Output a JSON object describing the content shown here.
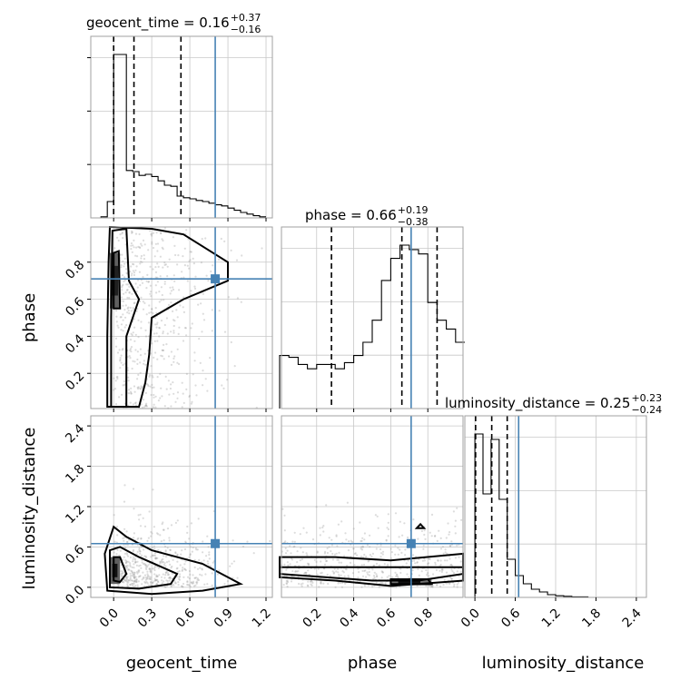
{
  "chart_data": {
    "type": "corner",
    "parameters": [
      "geocent_time",
      "phase",
      "luminosity_distance"
    ],
    "ranges": {
      "geocent_time": [
        -0.18,
        1.25
      ],
      "phase": [
        0.01,
        0.99
      ],
      "luminosity_distance": [
        -0.15,
        2.55
      ]
    },
    "ticks": {
      "geocent_time": [
        "0.0",
        "0.3",
        "0.6",
        "0.9",
        "1.2"
      ],
      "phase": [
        "0.2",
        "0.4",
        "0.6",
        "0.8"
      ],
      "luminosity_distance": [
        "0.0",
        "0.6",
        "1.2",
        "1.8",
        "2.4"
      ]
    },
    "truth": {
      "geocent_time": 0.8,
      "phase": 0.71,
      "luminosity_distance": 0.65
    },
    "titles": {
      "geocent_time": {
        "name": "geocent_time",
        "value": "0.16",
        "plus": "+0.37",
        "minus": "−0.16"
      },
      "phase": {
        "name": "phase",
        "value": "0.66",
        "plus": "+0.19",
        "minus": "−0.38"
      },
      "luminosity_distance": {
        "name": "luminosity_distance",
        "value": "0.25",
        "plus": "+0.23",
        "minus": "−0.24"
      }
    },
    "quantiles": {
      "geocent_time": [
        0.0,
        0.16,
        0.53
      ],
      "phase": [
        0.28,
        0.66,
        0.85
      ],
      "luminosity_distance": [
        0.01,
        0.25,
        0.48
      ]
    },
    "histograms": {
      "geocent_time": {
        "edges": [
          -0.1,
          -0.05,
          0.0,
          0.05,
          0.1,
          0.15,
          0.2,
          0.25,
          0.3,
          0.35,
          0.4,
          0.45,
          0.5,
          0.55,
          0.6,
          0.65,
          0.7,
          0.75,
          0.8,
          0.85,
          0.9,
          0.95,
          1.0,
          1.05,
          1.1,
          1.15,
          1.2
        ],
        "counts": [
          2,
          30,
          300,
          300,
          87,
          85,
          78,
          80,
          76,
          68,
          60,
          58,
          40,
          37,
          35,
          32,
          30,
          27,
          24,
          22,
          18,
          14,
          10,
          7,
          4,
          2
        ]
      },
      "phase": {
        "edges": [
          0.0,
          0.05,
          0.1,
          0.15,
          0.2,
          0.25,
          0.3,
          0.35,
          0.4,
          0.45,
          0.5,
          0.55,
          0.6,
          0.65,
          0.7,
          0.75,
          0.8,
          0.85,
          0.9,
          0.95,
          1.0
        ],
        "counts": [
          60,
          58,
          50,
          45,
          50,
          50,
          45,
          52,
          60,
          75,
          100,
          145,
          170,
          185,
          180,
          175,
          120,
          100,
          90,
          75
        ]
      },
      "luminosity_distance": {
        "edges": [
          -0.12,
          0.0,
          0.12,
          0.24,
          0.36,
          0.48,
          0.6,
          0.72,
          0.84,
          0.96,
          1.08,
          1.2,
          1.32,
          1.44,
          1.56,
          1.68,
          1.8,
          1.92,
          2.04,
          2.16,
          2.28,
          2.4
        ],
        "counts": [
          0,
          300,
          190,
          290,
          180,
          70,
          40,
          25,
          15,
          10,
          5,
          3,
          2,
          1,
          1,
          0,
          0,
          0,
          0,
          0,
          0
        ]
      }
    },
    "contours_2d": {
      "geocent_time|phase": [
        [
          [
            -0.05,
            0.02
          ],
          [
            -0.05,
            0.4
          ],
          [
            -0.04,
            0.8
          ],
          [
            -0.03,
            0.99
          ],
          [
            0.3,
            0.98
          ],
          [
            0.55,
            0.95
          ],
          [
            0.9,
            0.8
          ],
          [
            0.9,
            0.7
          ],
          [
            0.55,
            0.6
          ],
          [
            0.3,
            0.5
          ],
          [
            0.28,
            0.3
          ],
          [
            0.25,
            0.15
          ],
          [
            0.2,
            0.02
          ]
        ],
        [
          [
            -0.02,
            0.02
          ],
          [
            -0.02,
            0.5
          ],
          [
            -0.01,
            0.97
          ],
          [
            0.1,
            0.98
          ],
          [
            0.12,
            0.7
          ],
          [
            0.2,
            0.6
          ],
          [
            0.1,
            0.4
          ],
          [
            0.1,
            0.02
          ]
        ],
        [
          [
            0.0,
            0.55
          ],
          [
            0.0,
            0.85
          ],
          [
            0.04,
            0.86
          ],
          [
            0.05,
            0.55
          ]
        ]
      ],
      "geocent_time|luminosity_distance": [
        [
          [
            -0.05,
            -0.05
          ],
          [
            -0.07,
            0.5
          ],
          [
            0.0,
            0.9
          ],
          [
            0.1,
            0.75
          ],
          [
            0.3,
            0.55
          ],
          [
            0.7,
            0.35
          ],
          [
            1.0,
            0.05
          ],
          [
            0.7,
            -0.05
          ],
          [
            0.3,
            -0.1
          ]
        ],
        [
          [
            -0.03,
            0.0
          ],
          [
            -0.03,
            0.55
          ],
          [
            0.05,
            0.6
          ],
          [
            0.2,
            0.45
          ],
          [
            0.5,
            0.2
          ],
          [
            0.45,
            0.05
          ],
          [
            0.2,
            -0.02
          ]
        ],
        [
          [
            0.0,
            0.1
          ],
          [
            0.0,
            0.45
          ],
          [
            0.05,
            0.45
          ],
          [
            0.1,
            0.2
          ],
          [
            0.05,
            0.08
          ]
        ]
      ],
      "phase|luminosity_distance": [
        [
          [
            0.0,
            0.45
          ],
          [
            0.3,
            0.45
          ],
          [
            0.6,
            0.4
          ],
          [
            0.99,
            0.5
          ],
          [
            0.99,
            0.1
          ],
          [
            0.6,
            0.02
          ],
          [
            0.3,
            0.1
          ],
          [
            0.0,
            0.15
          ]
        ],
        [
          [
            0.0,
            0.3
          ],
          [
            0.5,
            0.3
          ],
          [
            0.75,
            0.3
          ],
          [
            0.99,
            0.3
          ],
          [
            0.99,
            0.2
          ],
          [
            0.75,
            0.1
          ],
          [
            0.5,
            0.1
          ],
          [
            0.0,
            0.2
          ]
        ],
        [
          [
            0.6,
            0.05
          ],
          [
            0.6,
            0.12
          ],
          [
            0.8,
            0.12
          ],
          [
            0.82,
            0.05
          ]
        ],
        [
          [
            0.74,
            0.88
          ],
          [
            0.76,
            0.94
          ],
          [
            0.78,
            0.88
          ]
        ]
      ]
    }
  }
}
